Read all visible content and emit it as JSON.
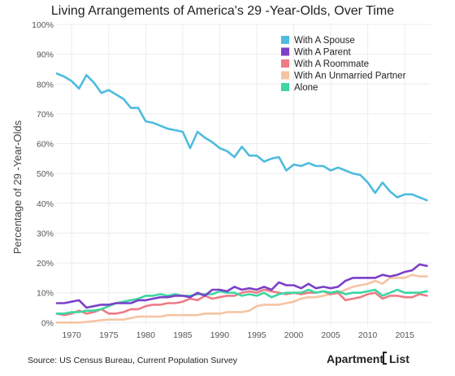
{
  "chart_data": {
    "type": "line",
    "title": "Living Arrangements of America's 29 -Year-Olds, Over Time",
    "ylabel": "Percentage of 29 -Year-Olds",
    "xlabel": "",
    "xlim": [
      1968,
      2018.5
    ],
    "ylim": [
      -1,
      100
    ],
    "x_ticks": [
      1970,
      1975,
      1980,
      1985,
      1990,
      1995,
      2000,
      2005,
      2010,
      2015
    ],
    "y_ticks": [
      0,
      10,
      20,
      30,
      40,
      50,
      60,
      70,
      80,
      90,
      100
    ],
    "y_tick_labels": [
      "0%",
      "10%",
      "20%",
      "30%",
      "40%",
      "50%",
      "60%",
      "70%",
      "80%",
      "90%",
      "100%"
    ],
    "grid": true,
    "legend_position": "top-right",
    "x": [
      1968,
      1969,
      1970,
      1971,
      1972,
      1973,
      1974,
      1975,
      1976,
      1977,
      1978,
      1979,
      1980,
      1981,
      1982,
      1983,
      1984,
      1985,
      1986,
      1987,
      1988,
      1989,
      1990,
      1991,
      1992,
      1993,
      1994,
      1995,
      1996,
      1997,
      1998,
      1999,
      2000,
      2001,
      2002,
      2003,
      2004,
      2005,
      2006,
      2007,
      2008,
      2009,
      2010,
      2011,
      2012,
      2013,
      2014,
      2015,
      2016,
      2017,
      2018
    ],
    "series": [
      {
        "name": "With A Spouse",
        "color": "#4dbcde",
        "values": [
          83.5,
          82.5,
          81,
          78.5,
          83,
          80.5,
          77,
          78,
          76.5,
          75,
          72,
          72,
          67.5,
          67,
          66,
          65,
          64.5,
          64,
          58.5,
          64,
          62,
          60.5,
          58.5,
          57.5,
          55.5,
          59,
          56,
          56,
          54,
          55,
          55.5,
          51,
          53,
          52.5,
          53.5,
          52.5,
          52.5,
          51,
          52,
          51,
          50,
          49.5,
          47,
          43.5,
          47,
          44,
          42,
          43,
          43,
          42,
          41
        ]
      },
      {
        "name": "With A Parent",
        "color": "#7b3fc8",
        "values": [
          6.5,
          6.5,
          7,
          7.5,
          5,
          5.5,
          6,
          6,
          6.5,
          6.5,
          6.5,
          7.5,
          7.5,
          8,
          8.5,
          8.5,
          9,
          9,
          8.5,
          10,
          9,
          11,
          11,
          10.5,
          12,
          11,
          11.5,
          11,
          12,
          11,
          13.5,
          12.5,
          12.5,
          11.5,
          13,
          11.5,
          12,
          11.5,
          12,
          14,
          15,
          15,
          15,
          15,
          16,
          15.5,
          16,
          17,
          17.5,
          19.5,
          19
        ]
      },
      {
        "name": "With A Roommate",
        "color": "#ee7b85",
        "values": [
          3,
          2.5,
          3,
          4,
          3,
          3.5,
          4.5,
          3,
          3,
          3.5,
          4.5,
          4.5,
          5.5,
          6,
          6,
          6.5,
          6.5,
          7,
          8,
          7.5,
          9,
          8,
          8.5,
          9,
          9,
          10,
          10.5,
          10,
          11,
          10.5,
          10,
          9.5,
          10,
          9.5,
          10,
          10,
          10.5,
          9.5,
          10,
          7.5,
          8,
          8.5,
          9.5,
          10,
          8,
          9,
          9,
          8.5,
          8.5,
          9.5,
          9
        ]
      },
      {
        "name": "With An Unmarried Partner",
        "color": "#f5c4a3",
        "values": [
          0,
          0,
          0,
          0,
          0.2,
          0.5,
          0.8,
          1,
          1,
          1,
          1.5,
          2,
          2,
          2,
          2,
          2.5,
          2.5,
          2.5,
          2.5,
          2.5,
          3,
          3,
          3,
          3.5,
          3.5,
          3.5,
          4,
          5.5,
          6,
          6,
          6,
          6.5,
          7,
          8,
          8.5,
          8.5,
          9,
          9.5,
          10,
          11,
          12,
          12.5,
          13,
          14,
          13,
          15,
          15,
          15,
          16,
          15.5,
          15.5
        ]
      },
      {
        "name": "Alone",
        "color": "#3dd6a4",
        "values": [
          3,
          3,
          3.5,
          3.5,
          4,
          4,
          4.5,
          5.5,
          6.5,
          7,
          7.5,
          8,
          9,
          9,
          9.5,
          9,
          9.5,
          9,
          9,
          9.5,
          9.5,
          9.5,
          10.5,
          10,
          10,
          9,
          9.5,
          9,
          10,
          8.5,
          9.5,
          10,
          10,
          10,
          11,
          10,
          10.5,
          10,
          10.5,
          9.5,
          10,
          10,
          10.5,
          11,
          9,
          10,
          11,
          10,
          10,
          10,
          10.5
        ]
      }
    ]
  },
  "footer": {
    "source": "Source: US Census Bureau, Current Population Survey",
    "logo_left": "Apartment",
    "logo_right": "List",
    "logo_icon": "bracket-icon"
  }
}
